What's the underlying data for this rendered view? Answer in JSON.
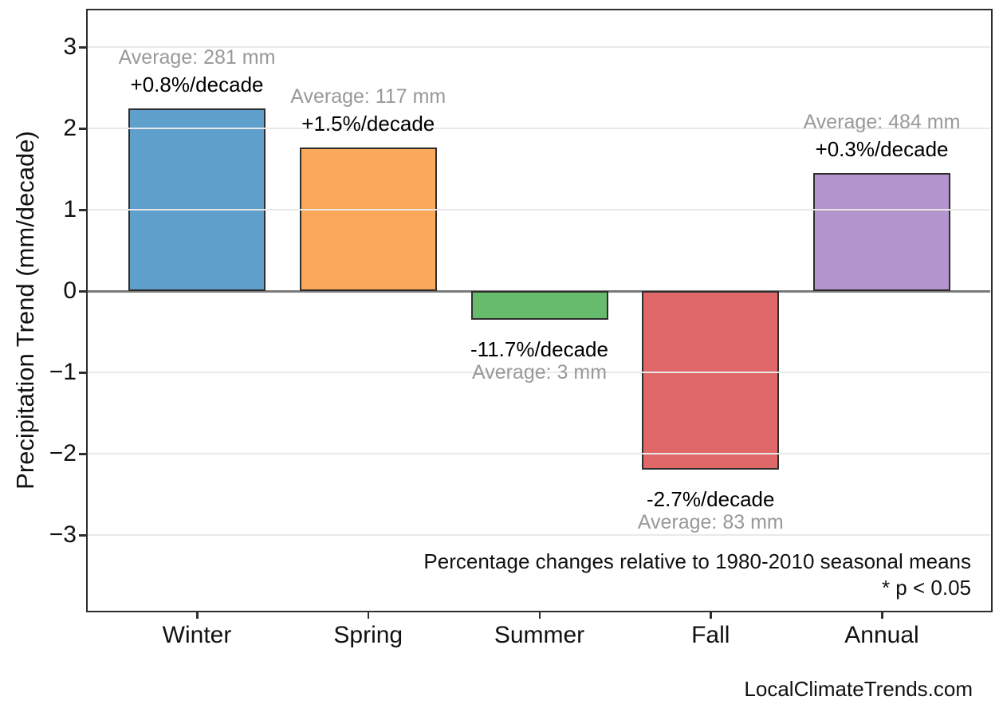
{
  "chart_data": {
    "type": "bar",
    "title": "",
    "xlabel": "",
    "ylabel": "Precipitation Trend (mm/decade)",
    "categories": [
      "Winter",
      "Spring",
      "Summer",
      "Fall",
      "Annual"
    ],
    "values": [
      2.25,
      1.76,
      -0.35,
      -2.2,
      1.45
    ],
    "bar_colors": [
      "#5f9fcb",
      "#fca85a",
      "#66bc6c",
      "#e16868",
      "#b394cd"
    ],
    "bar_edge_color": "#2e2e2e",
    "pct_labels": [
      "+0.8%/decade",
      "+1.5%/decade",
      "-11.7%/decade",
      "-2.7%/decade",
      "+0.3%/decade"
    ],
    "avg_labels": [
      "Average: 281 mm",
      "Average: 117 mm",
      "Average: 3 mm",
      "Average: 83 mm",
      "Average: 484 mm"
    ],
    "y_ticks": [
      3,
      2,
      1,
      0,
      -1,
      -2,
      -3
    ],
    "y_tick_labels": [
      "3",
      "2",
      "1",
      "0",
      "−1",
      "−2",
      "−3"
    ],
    "ylim": [
      -3.9,
      3.45
    ],
    "grid": true,
    "legend": "none",
    "annotations": {
      "line1": "Percentage changes relative to 1980-2010 seasonal means",
      "line2": "* p < 0.05"
    },
    "watermark": "LocalClimateTrends.com",
    "text_colors": {
      "pct": "#000000",
      "avg": "#999999"
    }
  }
}
